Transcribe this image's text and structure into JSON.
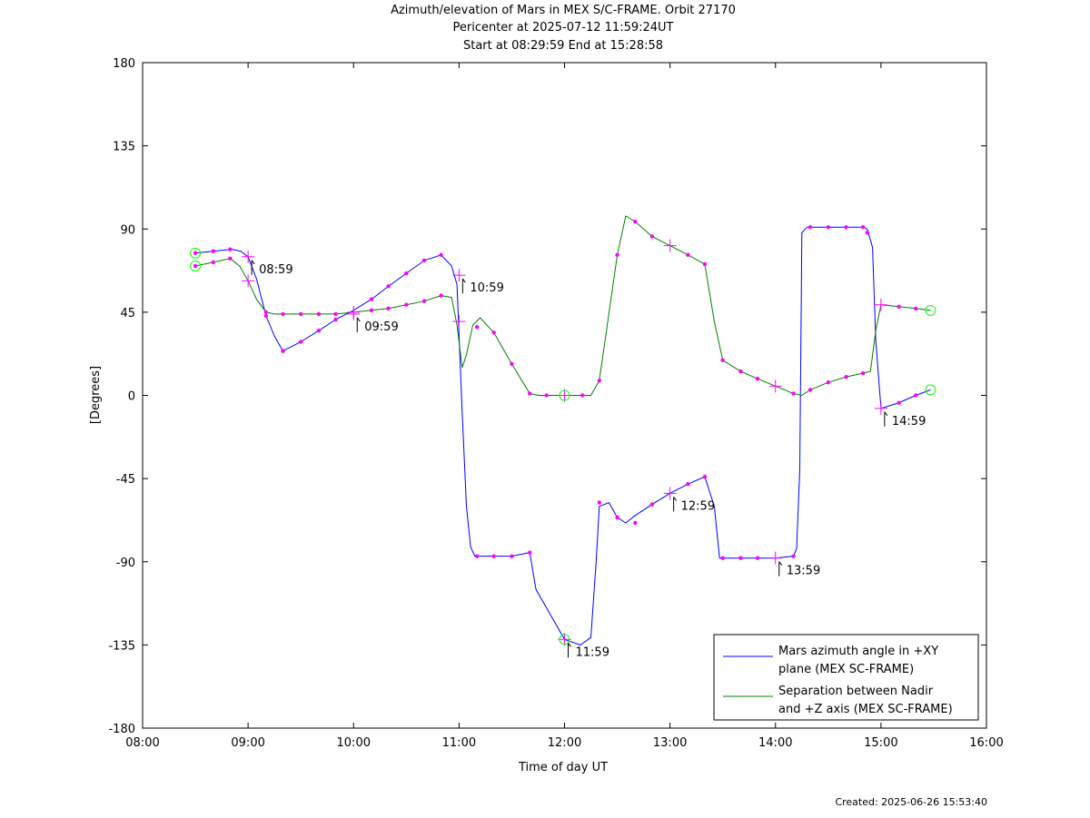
{
  "chart_data": {
    "type": "line",
    "title": "Azimuth/elevation of Mars in MEX S/C-FRAME.  Orbit 27170",
    "subtitle": [
      "Pericenter at 2025-07-12 11:59:24UT",
      "Start at 08:29:59 End at 15:28:58"
    ],
    "xlabel": "Time of day UT",
    "ylabel": "[Degrees]",
    "xlim": [
      8.0,
      16.0
    ],
    "ylim": [
      -180,
      180
    ],
    "xticks": [
      {
        "v": 8,
        "label": "08:00"
      },
      {
        "v": 9,
        "label": "09:00"
      },
      {
        "v": 10,
        "label": "10:00"
      },
      {
        "v": 11,
        "label": "11:00"
      },
      {
        "v": 12,
        "label": "12:00"
      },
      {
        "v": 13,
        "label": "13:00"
      },
      {
        "v": 14,
        "label": "14:00"
      },
      {
        "v": 15,
        "label": "15:00"
      },
      {
        "v": 16,
        "label": "16:00"
      }
    ],
    "yticks": [
      {
        "v": 180,
        "label": "180"
      },
      {
        "v": 135,
        "label": "135"
      },
      {
        "v": 90,
        "label": "90"
      },
      {
        "v": 45,
        "label": "45"
      },
      {
        "v": 0,
        "label": "0"
      },
      {
        "v": -45,
        "label": "-45"
      },
      {
        "v": -90,
        "label": "-90"
      },
      {
        "v": -135,
        "label": "-135"
      },
      {
        "v": -180,
        "label": "-180"
      }
    ],
    "legend_position": "bottom-right",
    "series": [
      {
        "name": "Mars azimuth angle in +XY plane (MEX SC-FRAME)",
        "legend_lines": [
          "Mars azimuth angle in +XY",
          "plane (MEX SC-FRAME)"
        ],
        "color": "#0000ff",
        "x": [
          8.5,
          8.67,
          8.85,
          8.93,
          9.0,
          9.08,
          9.17,
          9.25,
          9.33,
          9.5,
          9.67,
          9.83,
          10.0,
          10.17,
          10.33,
          10.5,
          10.67,
          10.83,
          10.93,
          10.98,
          11.03,
          11.07,
          11.11,
          11.15,
          11.2,
          11.33,
          11.5,
          11.67,
          11.73,
          11.83,
          12.0,
          12.15,
          12.25,
          12.3,
          12.33,
          12.42,
          12.5,
          12.58,
          12.67,
          12.83,
          13.0,
          13.17,
          13.33,
          13.42,
          13.47,
          13.67,
          13.83,
          14.0,
          14.17,
          14.2,
          14.23,
          14.25,
          14.3,
          14.5,
          14.67,
          14.83,
          14.87,
          14.92,
          14.95,
          15.0,
          15.17,
          15.33,
          15.47
        ],
        "y": [
          77,
          78,
          79,
          78,
          75,
          63,
          43,
          32,
          24,
          29,
          35,
          41,
          46,
          52,
          59,
          66,
          73,
          76,
          70,
          60,
          -10,
          -60,
          -82,
          -87,
          -87,
          -87,
          -87,
          -85,
          -105,
          -115,
          -132,
          -135,
          -131,
          -90,
          -60,
          -58,
          -66,
          -69,
          -65,
          -59,
          -53,
          -48,
          -44,
          -60,
          -88,
          -88,
          -88,
          -88,
          -87,
          -83,
          -40,
          88,
          91,
          91,
          91,
          91,
          90,
          80,
          30,
          -7,
          -4,
          0,
          3
        ],
        "markers_x": [
          8.5,
          8.67,
          8.83,
          9.17,
          9.33,
          9.5,
          9.67,
          9.83,
          10.17,
          10.33,
          10.5,
          10.67,
          10.83,
          11.17,
          11.33,
          11.5,
          11.67,
          12.33,
          12.5,
          12.67,
          12.83,
          13.17,
          13.33,
          13.5,
          13.67,
          13.83,
          14.17,
          14.33,
          14.5,
          14.67,
          14.83,
          14.87,
          15.17,
          15.33
        ],
        "markers_y": [
          77,
          78,
          79,
          43,
          24,
          29,
          35,
          41,
          52,
          59,
          66,
          73,
          76,
          -87,
          -87,
          -87,
          -85,
          -58,
          -66,
          -69,
          -59,
          -48,
          -44,
          -88,
          -88,
          -88,
          -87,
          91,
          91,
          91,
          91,
          88,
          -4,
          0
        ],
        "hour_marks_x": [
          9.0,
          10.0,
          11.0,
          12.0,
          13.0,
          14.0,
          15.0
        ],
        "hour_marks_y": [
          75,
          44,
          65,
          -132,
          -53,
          -88,
          -7
        ],
        "endpoints_x": [
          8.5,
          12.0,
          15.47
        ],
        "endpoints_y": [
          77,
          -132,
          3
        ]
      },
      {
        "name": "Separation between Nadir and +Z axis (MEX SC-FRAME)",
        "legend_lines": [
          "Separation between Nadir",
          "and +Z axis (MEX SC-FRAME)"
        ],
        "color": "#008000",
        "x": [
          8.5,
          8.67,
          8.83,
          8.92,
          9.0,
          9.08,
          9.17,
          9.25,
          9.33,
          9.5,
          9.67,
          9.83,
          10.0,
          10.17,
          10.33,
          10.5,
          10.67,
          10.83,
          10.93,
          10.98,
          11.03,
          11.07,
          11.13,
          11.2,
          11.33,
          11.5,
          11.67,
          11.75,
          12.0,
          12.25,
          12.33,
          12.5,
          12.58,
          12.67,
          12.83,
          13.0,
          13.17,
          13.33,
          13.42,
          13.5,
          13.67,
          13.83,
          14.0,
          14.17,
          14.25,
          14.33,
          14.5,
          14.67,
          14.83,
          14.9,
          14.95,
          15.0,
          15.17,
          15.33,
          15.47
        ],
        "y": [
          70,
          72,
          74,
          70,
          62,
          52,
          45,
          44,
          44,
          44,
          44,
          44,
          45,
          46,
          47,
          49,
          51,
          54,
          53,
          38,
          15,
          22,
          38,
          42,
          34,
          17,
          1,
          0,
          0,
          0,
          8,
          76,
          97,
          94,
          86,
          81,
          76,
          71,
          40,
          19,
          13,
          9,
          5,
          1,
          0,
          3,
          7,
          10,
          12,
          13,
          35,
          49,
          48,
          47,
          46
        ],
        "markers_x": [
          8.5,
          8.67,
          8.83,
          9.17,
          9.33,
          9.5,
          9.67,
          9.83,
          10.17,
          10.33,
          10.5,
          10.67,
          10.83,
          11.17,
          11.33,
          11.5,
          11.67,
          11.83,
          12.17,
          12.33,
          12.5,
          12.67,
          12.83,
          13.17,
          13.33,
          13.5,
          13.67,
          13.83,
          14.17,
          14.33,
          14.5,
          14.67,
          14.83,
          15.17,
          15.33
        ],
        "markers_y": [
          70,
          72,
          74,
          45,
          44,
          44,
          44,
          44,
          46,
          47,
          49,
          51,
          54,
          37,
          34,
          17,
          1,
          0,
          0,
          8,
          76,
          94,
          86,
          76,
          71,
          19,
          13,
          9,
          1,
          3,
          7,
          10,
          12,
          48,
          47
        ],
        "hour_marks_x": [
          9.0,
          10.0,
          11.0,
          12.0,
          13.0,
          14.0,
          15.0
        ],
        "hour_marks_y": [
          62,
          45,
          40,
          0,
          81,
          5,
          49
        ],
        "endpoints_x": [
          8.5,
          12.0,
          15.47
        ],
        "endpoints_y": [
          70,
          0,
          46
        ]
      }
    ],
    "annotations": [
      {
        "label": "08:59",
        "x": 9.0,
        "y": 75
      },
      {
        "label": "09:59",
        "x": 10.0,
        "y": 44
      },
      {
        "label": "10:59",
        "x": 11.0,
        "y": 65
      },
      {
        "label": "11:59",
        "x": 12.0,
        "y": -132
      },
      {
        "label": "12:59",
        "x": 13.0,
        "y": -53
      },
      {
        "label": "13:59",
        "x": 14.0,
        "y": -88
      },
      {
        "label": "14:59",
        "x": 15.0,
        "y": -7
      }
    ],
    "marker_color": "#ff00ff",
    "endpoint_color": "#00ff00",
    "footer": "Created: 2025-06-26 15:53:40"
  }
}
